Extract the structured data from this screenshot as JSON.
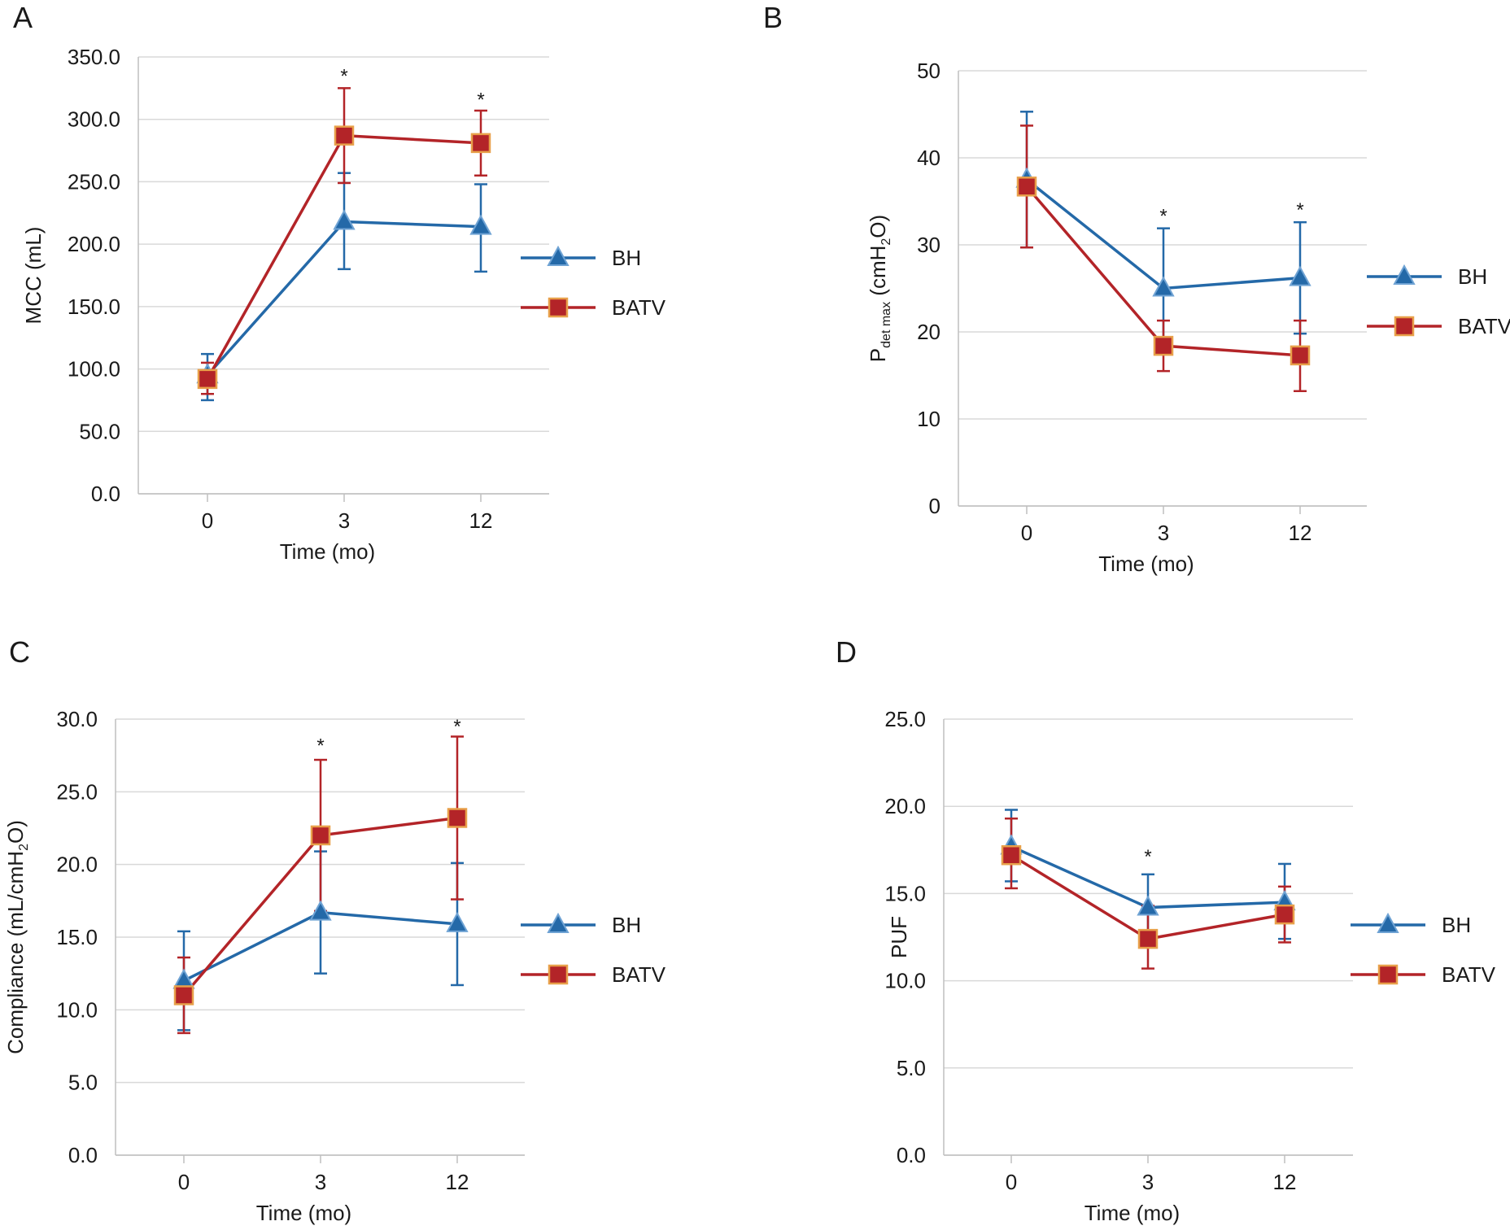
{
  "colors": {
    "BH": "#2469a8",
    "BATV": "#b32428",
    "BATV_marker_edge": "#e8a04a",
    "grid": "#d9d9d9",
    "axis": "#bfbfbf"
  },
  "chart_data": [
    {
      "panel": "A",
      "type": "line",
      "x": [
        0,
        3,
        12
      ],
      "xticklabels": [
        "0",
        "3",
        "12"
      ],
      "xlabel": "Time (mo)",
      "ylabel": "MCC (mL)",
      "ylim": [
        0,
        350
      ],
      "yticks": [
        0,
        50,
        100,
        150,
        200,
        250,
        300,
        350
      ],
      "ytickdecimals": 1,
      "grid": true,
      "legend": "right",
      "series": [
        {
          "name": "BH",
          "marker": "triangle",
          "values": [
            95,
            218,
            214
          ],
          "err_low": [
            75,
            180,
            178
          ],
          "err_high": [
            112,
            257,
            248
          ]
        },
        {
          "name": "BATV",
          "marker": "square",
          "values": [
            92,
            287,
            281
          ],
          "err_low": [
            80,
            249,
            255
          ],
          "err_high": [
            105,
            325,
            307
          ]
        }
      ],
      "annotations": [
        {
          "text": "*",
          "x": 3,
          "y": 336
        },
        {
          "text": "*",
          "x": 12,
          "y": 317
        }
      ]
    },
    {
      "panel": "B",
      "type": "line",
      "x": [
        0,
        3,
        12
      ],
      "xticklabels": [
        "0",
        "3",
        "12"
      ],
      "xlabel": "Time (mo)",
      "ylabel_prefix": "P",
      "ylabel_sub": "det max",
      "ylabel_mid": " (cmH",
      "ylabel_sub2": "2",
      "ylabel_suffix": "O)",
      "ylim": [
        0,
        50
      ],
      "yticks": [
        0,
        10,
        20,
        30,
        40,
        50
      ],
      "ytickdecimals": 0,
      "grid": true,
      "legend": "right",
      "series": [
        {
          "name": "BH",
          "marker": "triangle",
          "values": [
            37.5,
            25,
            26.2
          ],
          "err_low": [
            29.7,
            18.2,
            19.8
          ],
          "err_high": [
            45.3,
            31.9,
            32.6
          ]
        },
        {
          "name": "BATV",
          "marker": "square",
          "values": [
            36.7,
            18.4,
            17.3
          ],
          "err_low": [
            29.7,
            15.5,
            13.2
          ],
          "err_high": [
            43.7,
            21.3,
            21.3
          ]
        }
      ],
      "annotations": [
        {
          "text": "*",
          "x": 3,
          "y": 33.5
        },
        {
          "text": "*",
          "x": 12,
          "y": 34.2
        }
      ]
    },
    {
      "panel": "C",
      "type": "line",
      "x": [
        0,
        3,
        12
      ],
      "xticklabels": [
        "0",
        "3",
        "12"
      ],
      "xlabel": "Time (mo)",
      "ylabel_prefix": "Compliance (mL/cmH",
      "ylabel_sub": "2",
      "ylabel_suffix": "O)",
      "ylim": [
        0,
        30
      ],
      "yticks": [
        0,
        5,
        10,
        15,
        20,
        25,
        30
      ],
      "ytickdecimals": 1,
      "grid": true,
      "legend": "right",
      "series": [
        {
          "name": "BH",
          "marker": "triangle",
          "values": [
            12,
            16.7,
            15.9
          ],
          "err_low": [
            8.6,
            12.5,
            11.7
          ],
          "err_high": [
            15.4,
            20.9,
            20.1
          ]
        },
        {
          "name": "BATV",
          "marker": "square",
          "values": [
            11,
            22,
            23.2
          ],
          "err_low": [
            8.4,
            16.8,
            17.6
          ],
          "err_high": [
            13.6,
            27.2,
            28.8
          ]
        }
      ],
      "annotations": [
        {
          "text": "*",
          "x": 3,
          "y": 28.3
        },
        {
          "text": "*",
          "x": 12,
          "y": 29.6
        }
      ]
    },
    {
      "panel": "D",
      "type": "line",
      "x": [
        0,
        3,
        12
      ],
      "xticklabels": [
        "0",
        "3",
        "12"
      ],
      "xlabel": "Time (mo)",
      "ylabel": "PUF",
      "ylim": [
        0,
        25
      ],
      "yticks": [
        0,
        5,
        10,
        15,
        20,
        25
      ],
      "ytickdecimals": 1,
      "grid": true,
      "legend": "right",
      "series": [
        {
          "name": "BH",
          "marker": "triangle",
          "values": [
            17.7,
            14.2,
            14.5
          ],
          "err_low": [
            15.7,
            12.3,
            12.4
          ],
          "err_high": [
            19.8,
            16.1,
            16.7
          ]
        },
        {
          "name": "BATV",
          "marker": "square",
          "values": [
            17.2,
            12.4,
            13.8
          ],
          "err_low": [
            15.3,
            10.7,
            12.2
          ],
          "err_high": [
            19.3,
            14.3,
            15.4
          ]
        }
      ],
      "annotations": [
        {
          "text": "*",
          "x": 3,
          "y": 17.2
        }
      ]
    }
  ]
}
